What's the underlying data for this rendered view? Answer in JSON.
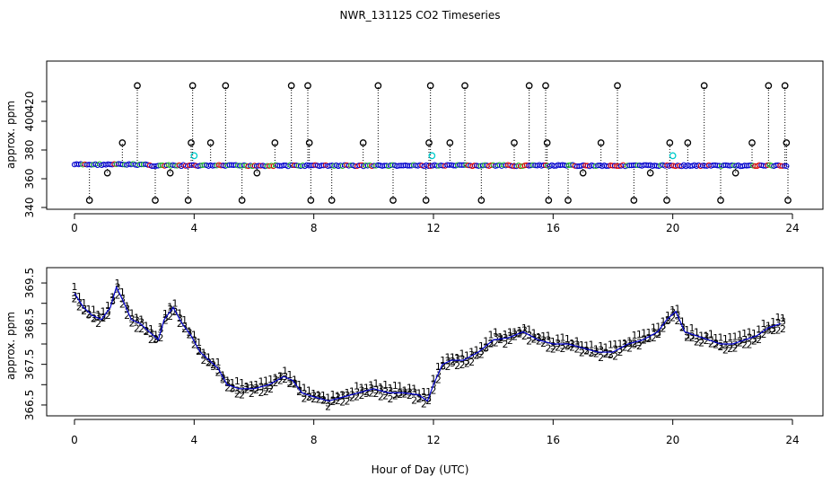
{
  "chart_data": [
    {
      "type": "scatter",
      "panel": "top",
      "title": "NWR_131125  CO2 Timeseries",
      "xlabel": "",
      "ylabel": "approx. ppm",
      "xlim": [
        0,
        24
      ],
      "ylim": [
        340,
        440
      ],
      "xticks": [
        0,
        4,
        8,
        12,
        16,
        20,
        24
      ],
      "yticks": [
        340,
        360,
        380,
        400,
        420
      ],
      "ytick_labels": [
        "340",
        "360",
        "380",
        "400",
        "420"
      ],
      "grid": false,
      "baseline_series": {
        "name": "hourly mean",
        "x": [
          0,
          0.5,
          1,
          1.5,
          2,
          2.5,
          3,
          3.5,
          4,
          4.5,
          5,
          5.5,
          6,
          6.5,
          7,
          7.5,
          8,
          8.5,
          9,
          9.5,
          10,
          10.5,
          11,
          11.5,
          12,
          12.5,
          13,
          13.5,
          14,
          14.5,
          15,
          15.5,
          16,
          16.5,
          17,
          17.5,
          18,
          18.5,
          19,
          19.5,
          20,
          20.5,
          21,
          21.5,
          22,
          22.5,
          23,
          23.5,
          23.8
        ],
        "y": [
          369.2,
          368.8,
          368.7,
          369.1,
          369.4,
          368.6,
          368.4,
          368.9,
          367.8,
          367.5,
          367.0,
          366.9,
          366.9,
          367.0,
          367.1,
          366.9,
          366.7,
          366.6,
          366.6,
          366.8,
          366.8,
          366.9,
          366.8,
          366.6,
          367.6,
          367.7,
          367.7,
          367.9,
          368.2,
          368.2,
          368.3,
          368.2,
          368.1,
          368.0,
          367.9,
          367.8,
          367.9,
          368.0,
          368.1,
          368.4,
          368.6,
          368.1,
          368.0,
          368.0,
          367.9,
          367.9,
          368.2,
          368.3,
          368.4
        ]
      },
      "spikes": {
        "x": [
          0.5,
          1.1,
          1.6,
          2.1,
          2.7,
          3.2,
          3.8,
          3.9,
          3.95,
          4.55,
          5.05,
          5.6,
          6.1,
          6.7,
          7.25,
          7.8,
          7.85,
          7.9,
          8.6,
          9.65,
          10.15,
          10.65,
          11.75,
          11.85,
          11.9,
          12.55,
          13.05,
          13.6,
          14.7,
          15.2,
          15.75,
          15.8,
          15.85,
          16.5,
          17.0,
          17.6,
          18.15,
          18.7,
          19.25,
          19.8,
          19.9,
          20.5,
          21.05,
          21.6,
          22.1,
          22.65,
          23.2,
          23.75,
          23.8,
          23.85
        ],
        "y": [
          345,
          364,
          385,
          436,
          345,
          364,
          345,
          385,
          436,
          385,
          436,
          345,
          364,
          385,
          436,
          436,
          385,
          345,
          345,
          385,
          436,
          345,
          345,
          385,
          436,
          385,
          436,
          345,
          385,
          436,
          436,
          385,
          345,
          345,
          364,
          385,
          436,
          345,
          364,
          345,
          385,
          385,
          436,
          345,
          364,
          385,
          436,
          436,
          385,
          345
        ]
      },
      "cyan_points": {
        "x": [
          4.0,
          11.95,
          20.0
        ],
        "y": [
          376,
          376,
          376
        ]
      }
    },
    {
      "type": "scatter",
      "panel": "bottom",
      "title": "",
      "xlabel": "Hour of Day (UTC)",
      "ylabel": "approx. ppm",
      "xlim": [
        0,
        24
      ],
      "ylim": [
        366.3,
        369.7
      ],
      "xticks": [
        0,
        4,
        8,
        12,
        16,
        20,
        24
      ],
      "yticks": [
        366.5,
        367.5,
        368.5,
        369.5
      ],
      "ytick_labels": [
        "366.5",
        "367.5",
        "368.5",
        "369.5"
      ],
      "grid": false,
      "legend": "none",
      "series": [
        {
          "name": "1",
          "symbol": "1",
          "color": "#dd0000",
          "offset": 0.12
        },
        {
          "name": "2",
          "symbol": "2",
          "color": "#22bb22",
          "offset": -0.08
        },
        {
          "name": "3",
          "symbol": "3",
          "color": "#0000cc",
          "offset": 0.0
        }
      ],
      "trend": {
        "x": [
          0,
          0.3,
          0.6,
          0.9,
          1.2,
          1.4,
          1.6,
          1.9,
          2.2,
          2.5,
          2.8,
          3.0,
          3.3,
          3.6,
          3.9,
          4.2,
          4.5,
          4.8,
          5.1,
          5.5,
          6.0,
          6.5,
          7.0,
          7.3,
          7.6,
          8.0,
          8.5,
          9.0,
          9.5,
          10.0,
          10.5,
          11.0,
          11.5,
          11.8,
          12.0,
          12.3,
          12.6,
          13.0,
          13.5,
          14.0,
          14.5,
          15.0,
          15.5,
          16.0,
          16.5,
          17.0,
          17.5,
          18.0,
          18.5,
          19.0,
          19.5,
          19.8,
          20.1,
          20.4,
          20.8,
          21.2,
          21.6,
          22.0,
          22.4,
          22.8,
          23.2,
          23.6
        ],
        "y": [
          369.25,
          368.9,
          368.7,
          368.6,
          368.9,
          369.4,
          369.1,
          368.6,
          368.5,
          368.3,
          368.1,
          368.6,
          368.9,
          368.5,
          368.2,
          367.8,
          367.6,
          367.4,
          367.0,
          366.9,
          366.9,
          367.0,
          367.2,
          367.1,
          366.8,
          366.7,
          366.6,
          366.7,
          366.8,
          366.9,
          366.8,
          366.8,
          366.75,
          366.6,
          367.0,
          367.5,
          367.6,
          367.6,
          367.8,
          368.1,
          368.15,
          368.3,
          368.1,
          368.0,
          368.0,
          367.9,
          367.8,
          367.8,
          368.0,
          368.1,
          368.3,
          368.6,
          368.8,
          368.3,
          368.2,
          368.1,
          368.0,
          368.0,
          368.1,
          368.2,
          368.4,
          368.5
        ]
      }
    }
  ]
}
